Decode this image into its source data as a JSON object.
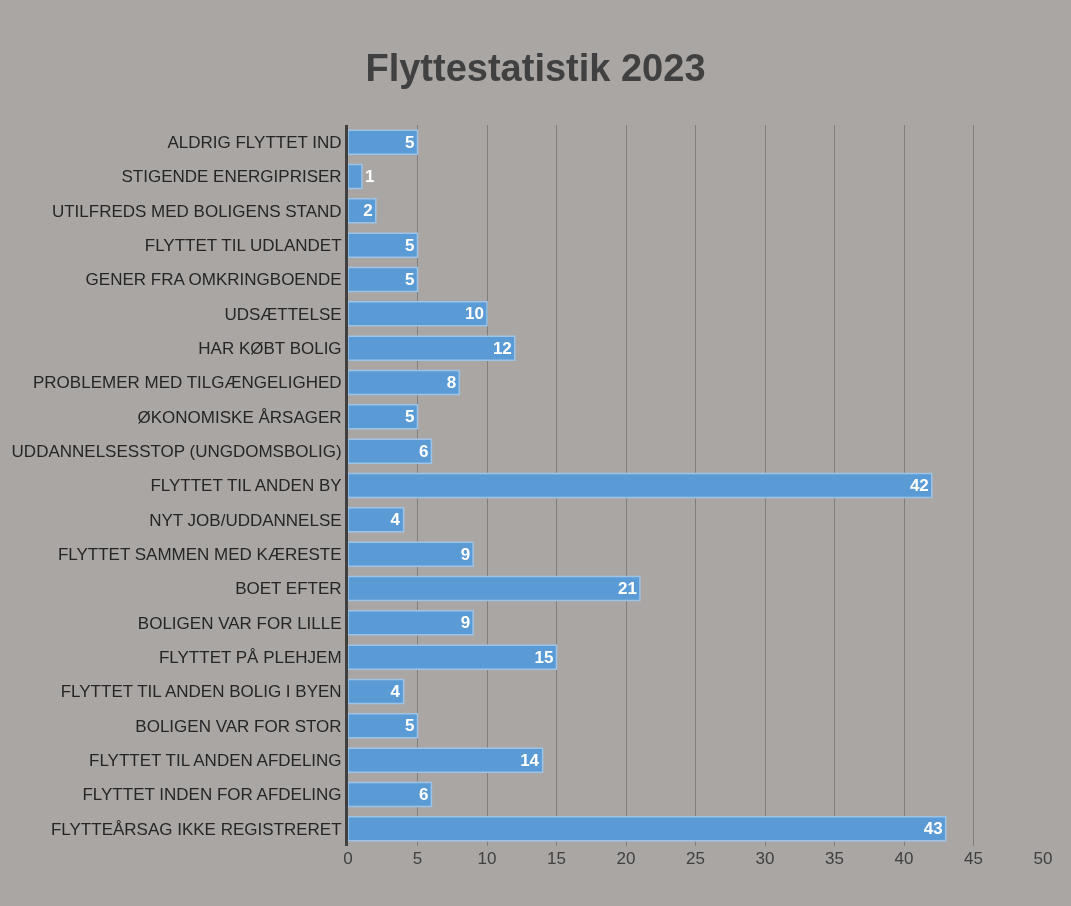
{
  "chart_data": {
    "type": "bar",
    "orientation": "horizontal",
    "title": "Flyttestatistik 2023",
    "categories": [
      "ALDRIG FLYTTET IND",
      "STIGENDE ENERGIPRISER",
      "UTILFREDS MED BOLIGENS STAND",
      "FLYTTET TIL UDLANDET",
      "GENER FRA OMKRINGBOENDE",
      "UDSÆTTELSE",
      "HAR KØBT BOLIG",
      "PROBLEMER MED TILGÆNGELIGHED",
      "ØKONOMISKE ÅRSAGER",
      "UDDANNELSESSTOP (UNGDOMSBOLIG)",
      "FLYTTET TIL ANDEN BY",
      "NYT JOB/UDDANNELSE",
      "FLYTTET SAMMEN MED KÆRESTE",
      "BOET EFTER",
      "BOLIGEN VAR FOR LILLE",
      "FLYTTET PÅ PLEHJEM",
      "FLYTTET TIL ANDEN BOLIG I BYEN",
      "BOLIGEN VAR FOR STOR",
      "FLYTTET TIL ANDEN AFDELING",
      "FLYTTET INDEN FOR AFDELING",
      "FLYTTEÅRSAG IKKE REGISTRERET"
    ],
    "values": [
      5,
      1,
      2,
      5,
      5,
      10,
      12,
      8,
      5,
      6,
      42,
      4,
      9,
      21,
      9,
      15,
      4,
      5,
      14,
      6,
      43
    ],
    "color": "#5b9bd5",
    "xlim": [
      0,
      50
    ],
    "xticks": [
      0,
      5,
      10,
      15,
      20,
      25,
      30,
      35,
      40,
      45,
      50
    ],
    "grid": "x",
    "data_labels": true
  }
}
